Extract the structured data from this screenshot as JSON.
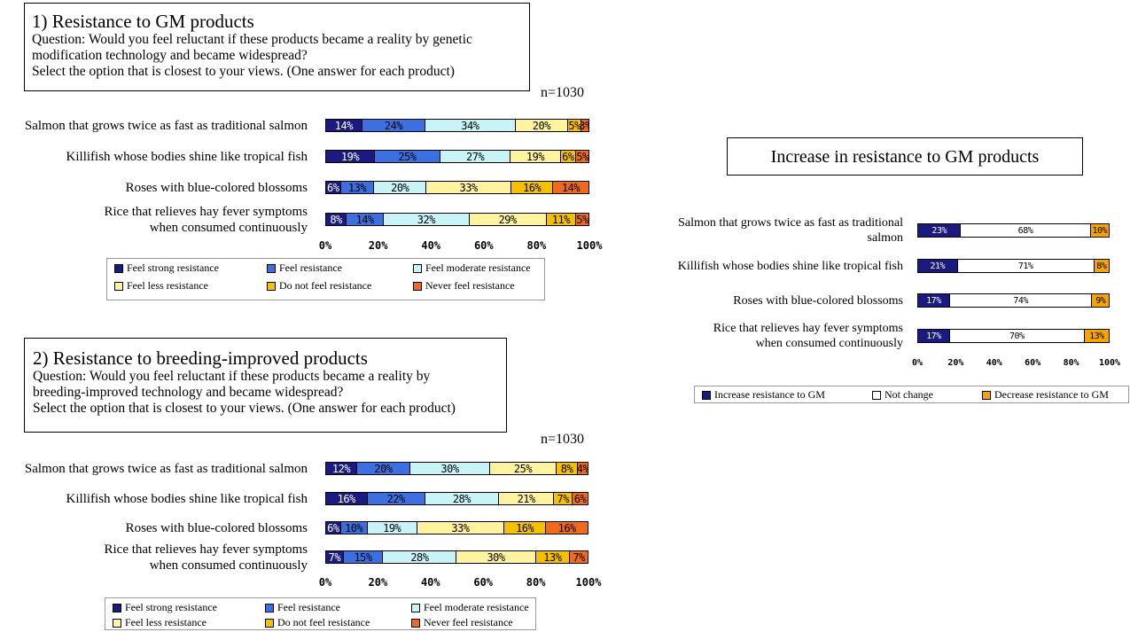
{
  "colors": {
    "strong": "#1a1a80",
    "resist": "#3c6fe0",
    "moderate": "#c8f4f8",
    "less": "#fff3a0",
    "notfeel": "#f5c000",
    "never": "#ef6a1c",
    "increase": "#1a1a80",
    "nochange": "#ffffff",
    "decrease": "#f5a400"
  },
  "panel1": {
    "title": "1) Resistance to GM products",
    "question_lines": [
      "Question: Would you feel reluctant if these products became a reality by genetic",
      "modification technology and became widespread?",
      "Select the option that is closest to your views. (One answer for each product)"
    ],
    "n_label": "n=1030",
    "ticks": [
      "0%",
      "20%",
      "40%",
      "60%",
      "80%",
      "100%"
    ],
    "legend": [
      "Feel strong resistance",
      "Feel resistance",
      "Feel moderate resistance",
      "Feel less resistance",
      "Do not feel resistance",
      "Never feel resistance"
    ]
  },
  "panel2": {
    "title": "2) Resistance to breeding-improved products",
    "question_lines": [
      "Question: Would you feel reluctant if these products became a reality by",
      "breeding-improved technology and became widespread?",
      "Select the option that is closest to your views. (One answer for each product)"
    ],
    "n_label": "n=1030",
    "ticks": [
      "0%",
      "20%",
      "40%",
      "60%",
      "80%",
      "100%"
    ],
    "legend": [
      "Feel strong resistance",
      "Feel resistance",
      "Feel moderate resistance",
      "Feel less resistance",
      "Do not feel resistance",
      "Never feel resistance"
    ]
  },
  "panel3": {
    "title": "Increase in resistance to GM products",
    "ticks": [
      "0%",
      "20%",
      "40%",
      "60%",
      "80%",
      "100%"
    ],
    "legend": [
      "Increase resistance to GM",
      "Not change",
      "Decrease resistance to GM"
    ]
  },
  "chart_data": [
    {
      "type": "bar",
      "orientation": "horizontal-stacked-100",
      "title": "1) Resistance to GM products",
      "categories": [
        [
          "Salmon that grows twice as fast as traditional salmon"
        ],
        [
          "Killifish whose bodies shine like tropical fish"
        ],
        [
          "Roses with blue-colored blossoms"
        ],
        [
          "Rice that relieves hay fever symptoms",
          "when consumed continuously"
        ]
      ],
      "series": [
        {
          "name": "Feel strong resistance",
          "values": [
            14,
            19,
            6,
            8
          ]
        },
        {
          "name": "Feel resistance",
          "values": [
            24,
            25,
            13,
            14
          ]
        },
        {
          "name": "Feel moderate resistance",
          "values": [
            34,
            27,
            20,
            32
          ]
        },
        {
          "name": "Feel less resistance",
          "values": [
            20,
            19,
            33,
            29
          ]
        },
        {
          "name": "Do not feel resistance",
          "values": [
            5,
            6,
            16,
            11
          ]
        },
        {
          "name": "Never feel resistance",
          "values": [
            3,
            5,
            14,
            5
          ]
        }
      ],
      "value_labels": [
        [
          "14%",
          "24%",
          "34%",
          "20%",
          "5%",
          "3%"
        ],
        [
          "19%",
          "25%",
          "27%",
          "19%",
          "6%",
          "5%"
        ],
        [
          "6%",
          "13%",
          "20%",
          "33%",
          "16%",
          "14%"
        ],
        [
          "8%",
          "14%",
          "32%",
          "29%",
          "11%",
          "5%"
        ]
      ],
      "xlim": [
        0,
        100
      ],
      "legend_position": "bottom"
    },
    {
      "type": "bar",
      "orientation": "horizontal-stacked-100",
      "title": "2) Resistance to breeding-improved products",
      "categories": [
        [
          "Salmon that grows twice as fast as traditional salmon"
        ],
        [
          "Killifish whose bodies shine like tropical fish"
        ],
        [
          "Roses with blue-colored blossoms"
        ],
        [
          "Rice that relieves hay fever symptoms",
          "when consumed continuously"
        ]
      ],
      "series": [
        {
          "name": "Feel strong resistance",
          "values": [
            12,
            16,
            6,
            7
          ]
        },
        {
          "name": "Feel resistance",
          "values": [
            20,
            22,
            10,
            15
          ]
        },
        {
          "name": "Feel moderate resistance",
          "values": [
            30,
            28,
            19,
            28
          ]
        },
        {
          "name": "Feel less resistance",
          "values": [
            25,
            21,
            33,
            30
          ]
        },
        {
          "name": "Do not feel resistance",
          "values": [
            8,
            7,
            16,
            13
          ]
        },
        {
          "name": "Never feel resistance",
          "values": [
            4,
            6,
            16,
            7
          ]
        }
      ],
      "value_labels": [
        [
          "12%",
          "20%",
          "30%",
          "25%",
          "8%",
          "4%"
        ],
        [
          "16%",
          "22%",
          "28%",
          "21%",
          "7%",
          "6%"
        ],
        [
          "6%",
          "10%",
          "19%",
          "33%",
          "16%",
          "16%"
        ],
        [
          "7%",
          "15%",
          "28%",
          "30%",
          "13%",
          "7%"
        ]
      ],
      "xlim": [
        0,
        100
      ],
      "legend_position": "bottom"
    },
    {
      "type": "bar",
      "orientation": "horizontal-stacked-100",
      "title": "Increase in resistance to GM products",
      "categories": [
        [
          "Salmon that grows twice as fast as traditional",
          "salmon"
        ],
        [
          "Killifish whose bodies shine like tropical fish"
        ],
        [
          "Roses with blue-colored blossoms"
        ],
        [
          "Rice that relieves hay fever symptoms",
          "when consumed continuously"
        ]
      ],
      "series": [
        {
          "name": "Increase resistance to GM",
          "values": [
            23,
            21,
            17,
            17
          ]
        },
        {
          "name": "Not change",
          "values": [
            68,
            71,
            74,
            70
          ]
        },
        {
          "name": "Decrease resistance to GM",
          "values": [
            10,
            8,
            9,
            13
          ]
        }
      ],
      "value_labels": [
        [
          "23%",
          "68%",
          "10%"
        ],
        [
          "21%",
          "71%",
          "8%"
        ],
        [
          "17%",
          "74%",
          "9%"
        ],
        [
          "17%",
          "70%",
          "13%"
        ]
      ],
      "xlim": [
        0,
        100
      ],
      "legend_position": "bottom"
    }
  ]
}
